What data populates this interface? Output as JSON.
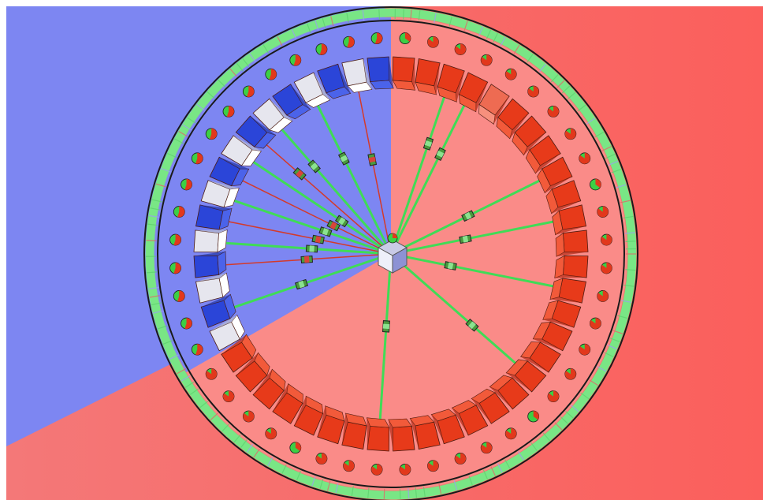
{
  "scene": {
    "colors": {
      "background_left": "#7d86f2",
      "background_right": "#fb6b68",
      "sector_blue": "#7d86f2",
      "sector_red": "#fa8b88",
      "ring_green": "#79e685",
      "ring_outline": "#1a1a1a",
      "node_red": "#e73a1a",
      "node_blue": "#2b45d8",
      "node_white": "#e6e6ee",
      "link_green": "#3fdc56",
      "link_red": "#d43a2a",
      "hub_top": "#c9cbe6",
      "hub_front": "#8d92d4"
    },
    "nodes": {
      "count": 48,
      "blue_fraction": 0.3333,
      "highlighted_index": 4
    },
    "links": {
      "green_targets": [
        2,
        3,
        8,
        10,
        13,
        17,
        24,
        33,
        36,
        38,
        40,
        42,
        44
      ],
      "red_targets": [
        35,
        37,
        39,
        41,
        46
      ]
    },
    "icons": {
      "hub": "hub-cube-icon",
      "node": "node-block-icon",
      "indicator": "pie-indicator-icon",
      "packet": "packet-icon"
    }
  }
}
